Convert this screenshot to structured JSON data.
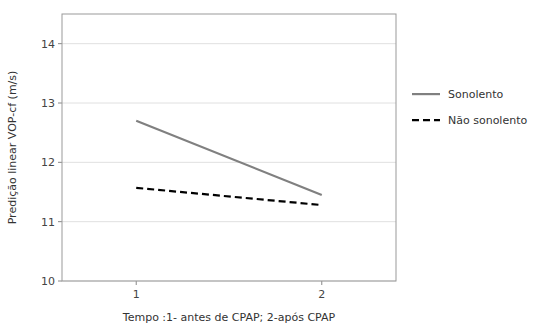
{
  "chart_data": {
    "type": "line",
    "x": [
      1,
      2
    ],
    "series": [
      {
        "name": "Sonolento",
        "color": "#808080",
        "line_style": "solid",
        "values": [
          12.7,
          11.45
        ]
      },
      {
        "name": "Não sonolento",
        "color": "#000000",
        "line_style": "dashed",
        "values": [
          11.57,
          11.28
        ]
      }
    ],
    "xlabel": "Tempo :1- antes de CPAP; 2-após CPAP",
    "ylabel": "Predição linear VOP-cf (m/s)",
    "xlim": [
      0.6,
      2.4
    ],
    "ylim": [
      10,
      14.5
    ],
    "xticks": [
      1,
      2
    ],
    "yticks": [
      10,
      11,
      12,
      13,
      14
    ],
    "grid": true,
    "legend": "right"
  }
}
